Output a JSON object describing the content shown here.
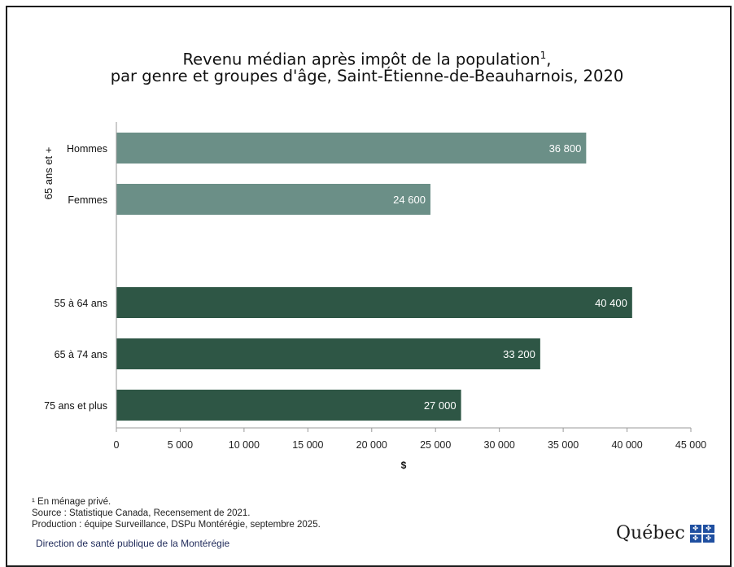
{
  "title_line1": "Revenu médian après impôt de la population",
  "title_sup": "1",
  "title_line1_end": ",",
  "title_line2": "par genre et groupes d'âge, Saint-Étienne-de-Beauharnois, 2020",
  "chart_data": {
    "type": "bar",
    "orientation": "horizontal",
    "group_label": "65 ans et +",
    "categories": [
      "Hommes",
      "Femmes",
      "55 à 64 ans",
      "65 à 74 ans",
      "75 ans et plus"
    ],
    "values": [
      36800,
      24600,
      40400,
      33200,
      27000
    ],
    "data_labels": [
      "36 800",
      "24 600",
      "40 400",
      "33 200",
      "27 000"
    ],
    "colors": [
      "#6b8f87",
      "#6b8f87",
      "#2e5645",
      "#2e5645",
      "#2e5645"
    ],
    "xlabel": "$",
    "xlim": [
      0,
      45000
    ],
    "x_ticks": [
      0,
      5000,
      10000,
      15000,
      20000,
      25000,
      30000,
      35000,
      40000,
      45000
    ],
    "x_tick_labels": [
      "0",
      "5 000",
      "10 000",
      "15 000",
      "20 000",
      "25 000",
      "30 000",
      "35 000",
      "40 000",
      "45 000"
    ],
    "grid": false
  },
  "footnote": "¹ En ménage privé.",
  "source": "Source : Statistique Canada, Recensement de 2021.",
  "production": "Production : équipe Surveillance, DSPu Montérégie, septembre 2025.",
  "direction": "Direction de santé publique de la Montérégie",
  "logo_text": "Québec"
}
